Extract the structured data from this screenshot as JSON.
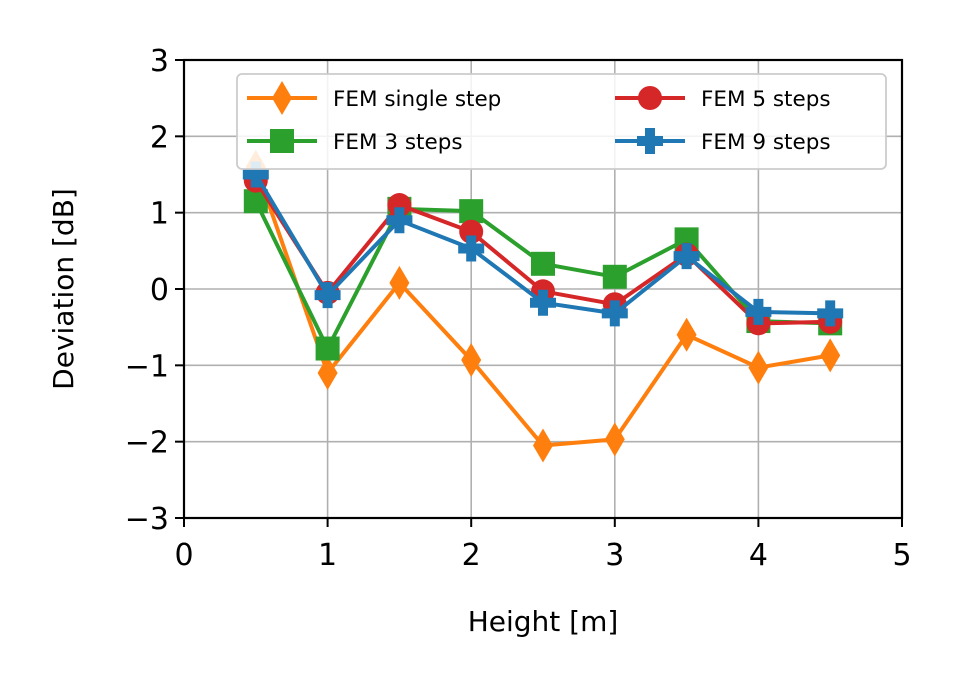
{
  "chart_data": {
    "type": "line",
    "xlabel": "Height [m]",
    "ylabel": "Deviation [dB]",
    "xlim": [
      0,
      5
    ],
    "ylim": [
      -3,
      3
    ],
    "xticks": [
      0,
      1,
      2,
      3,
      4,
      5
    ],
    "yticks": [
      -3,
      -2,
      -1,
      0,
      1,
      2,
      3
    ],
    "ytick_labels": [
      "−3",
      "−2",
      "−1",
      "0",
      "1",
      "2",
      "3"
    ],
    "xtick_labels": [
      "0",
      "1",
      "2",
      "3",
      "4",
      "5"
    ],
    "grid": true,
    "legend_position": "upper-right, two columns",
    "x": [
      0.5,
      1.0,
      1.5,
      2.0,
      2.5,
      3.0,
      3.5,
      4.0,
      4.5
    ],
    "series": [
      {
        "name": "FEM single step",
        "color": "#ff7f0e",
        "marker": "diamond",
        "values": [
          1.6,
          -1.1,
          0.08,
          -0.93,
          -2.05,
          -1.97,
          -0.6,
          -1.03,
          -0.87
        ]
      },
      {
        "name": "FEM 3 steps",
        "color": "#2ca02c",
        "marker": "square",
        "values": [
          1.15,
          -0.78,
          1.05,
          1.02,
          0.33,
          0.16,
          0.65,
          -0.42,
          -0.45
        ]
      },
      {
        "name": "FEM 5 steps",
        "color": "#d62728",
        "marker": "circle",
        "values": [
          1.42,
          -0.05,
          1.1,
          0.75,
          -0.03,
          -0.2,
          0.45,
          -0.45,
          -0.43
        ]
      },
      {
        "name": "FEM 9 steps",
        "color": "#1f77b4",
        "marker": "plus",
        "values": [
          1.5,
          -0.08,
          0.9,
          0.53,
          -0.18,
          -0.32,
          0.43,
          -0.3,
          -0.32
        ]
      }
    ]
  }
}
